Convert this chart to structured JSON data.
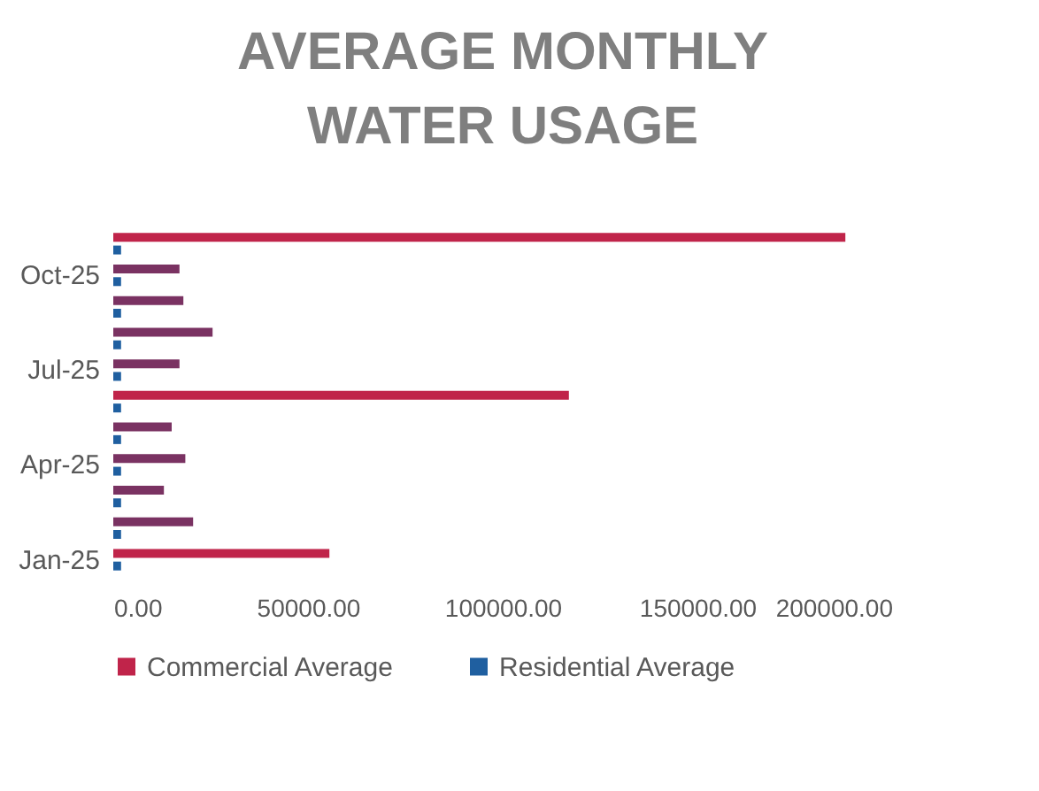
{
  "chart_data": {
    "type": "bar",
    "orientation": "horizontal",
    "title": [
      "AVERAGE MONTHLY",
      "WATER USAGE"
    ],
    "categories": [
      null,
      "Oct-25",
      null,
      null,
      "Jul-25",
      null,
      null,
      "Apr-25",
      null,
      null,
      "Jan-25"
    ],
    "series": [
      {
        "name": "Commercial Average",
        "color": "#c0244a",
        "colors": [
          "#c0244a",
          "#7a3262",
          "#7a3262",
          "#7a3262",
          "#7a3262",
          "#c0244a",
          "#7a3262",
          "#7a3262",
          "#7a3262",
          "#7a3262",
          "#c0244a"
        ],
        "values": [
          188000,
          17000,
          18000,
          25500,
          17000,
          117000,
          15000,
          18500,
          13000,
          20500,
          55500
        ]
      },
      {
        "name": "Residential Average",
        "color": "#1f5fa0",
        "values": [
          2000,
          2000,
          2000,
          2000,
          2000,
          2000,
          2000,
          2000,
          2000,
          2000,
          2000
        ]
      }
    ],
    "xlim": [
      0,
      200000
    ],
    "xticks": [
      {
        "value": 0,
        "label": "0.00"
      },
      {
        "value": 50000,
        "label": "50000.00"
      },
      {
        "value": 100000,
        "label": "100000.00"
      },
      {
        "value": 150000,
        "label": "150000.00"
      },
      {
        "value": 200000,
        "label": "200000.00"
      }
    ],
    "grid": false,
    "legend": "bottom"
  }
}
